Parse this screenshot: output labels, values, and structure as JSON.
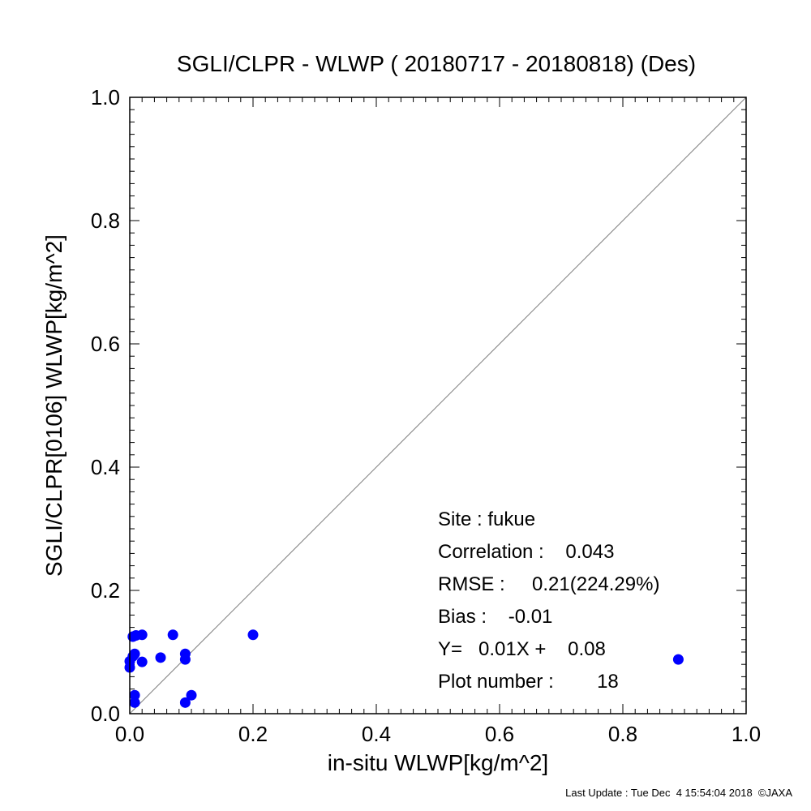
{
  "chart_data": {
    "type": "scatter",
    "title": "SGLI/CLPR - WLWP ( 20180717 - 20180818) (Des)",
    "xlabel": "in-situ WLWP[kg/m^2]",
    "ylabel": "SGLI/CLPR[0106]    WLWP[kg/m^2]",
    "xlim": [
      0.0,
      1.0
    ],
    "ylim": [
      0.0,
      1.0
    ],
    "x_ticks": [
      0.0,
      0.2,
      0.4,
      0.6,
      0.8,
      1.0
    ],
    "y_ticks": [
      0.0,
      0.2,
      0.4,
      0.6,
      0.8,
      1.0
    ],
    "x_tick_labels": [
      "0.0",
      "0.2",
      "0.4",
      "0.6",
      "0.8",
      "1.0"
    ],
    "y_tick_labels": [
      "0.0",
      "0.2",
      "0.4",
      "0.6",
      "0.8",
      "1.0"
    ],
    "grid": false,
    "reference_line": {
      "type": "1:1",
      "color": "#808080"
    },
    "marker_color": "#0000ff",
    "points": [
      {
        "x": 0.0,
        "y": 0.075
      },
      {
        "x": 0.0,
        "y": 0.085
      },
      {
        "x": 0.005,
        "y": 0.125
      },
      {
        "x": 0.01,
        "y": 0.127
      },
      {
        "x": 0.008,
        "y": 0.097
      },
      {
        "x": 0.005,
        "y": 0.093
      },
      {
        "x": 0.02,
        "y": 0.128
      },
      {
        "x": 0.02,
        "y": 0.084
      },
      {
        "x": 0.008,
        "y": 0.03
      },
      {
        "x": 0.008,
        "y": 0.018
      },
      {
        "x": 0.05,
        "y": 0.091
      },
      {
        "x": 0.07,
        "y": 0.128
      },
      {
        "x": 0.09,
        "y": 0.097
      },
      {
        "x": 0.09,
        "y": 0.088
      },
      {
        "x": 0.09,
        "y": 0.018
      },
      {
        "x": 0.1,
        "y": 0.03
      },
      {
        "x": 0.2,
        "y": 0.128
      },
      {
        "x": 0.89,
        "y": 0.088
      }
    ],
    "stats": {
      "site": "Site : fukue",
      "correlation": "Correlation :    0.043",
      "rmse": "RMSE :     0.21(224.29%)",
      "bias": "Bias :    -0.01",
      "fit": "Y=   0.01X +    0.08",
      "plot_number": "Plot number :        18"
    }
  },
  "footer": "Last Update : Tue Dec  4 15:54:04 2018  ©JAXA"
}
